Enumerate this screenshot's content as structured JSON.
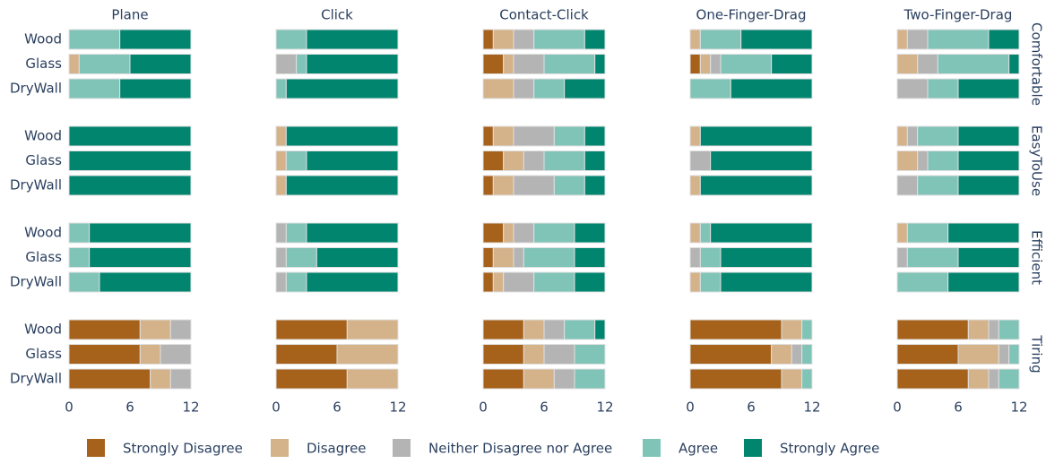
{
  "chart_data": {
    "type": "bar",
    "stacked": true,
    "horizontal": true,
    "columns": [
      "Plane",
      "Click",
      "Contact-Click",
      "One-Finger-Drag",
      "Two-Finger-Drag"
    ],
    "rows": [
      "Comfortable",
      "EasyToUse",
      "Efficient",
      "Tiring"
    ],
    "categories": [
      "Wood",
      "Glass",
      "DryWall"
    ],
    "xlim": [
      0,
      12
    ],
    "xticks": [
      0,
      6,
      12
    ],
    "series": [
      {
        "name": "Strongly Disagree",
        "color": "#a6611a",
        "values": [
          [
            [
              0,
              0,
              0
            ],
            [
              0,
              0,
              0
            ],
            [
              0,
              0,
              0
            ],
            [
              7,
              7,
              8
            ]
          ],
          [
            [
              0,
              0,
              0
            ],
            [
              0,
              0,
              0
            ],
            [
              0,
              0,
              0
            ],
            [
              7,
              6,
              7
            ]
          ],
          [
            [
              1,
              2,
              0
            ],
            [
              1,
              2,
              1
            ],
            [
              2,
              1,
              1
            ],
            [
              4,
              4,
              4
            ]
          ],
          [
            [
              0,
              1,
              0
            ],
            [
              0,
              0,
              0
            ],
            [
              0,
              0,
              0
            ],
            [
              9,
              8,
              9
            ]
          ],
          [
            [
              0,
              0,
              0
            ],
            [
              0,
              0,
              0
            ],
            [
              0,
              0,
              0
            ],
            [
              7,
              6,
              7
            ]
          ]
        ]
      },
      {
        "name": "Disagree",
        "color": "#d4b28a",
        "values": [
          [
            [
              0,
              1,
              0
            ],
            [
              0,
              0,
              0
            ],
            [
              0,
              0,
              0
            ],
            [
              3,
              2,
              2
            ]
          ],
          [
            [
              0,
              0,
              0
            ],
            [
              1,
              1,
              1
            ],
            [
              0,
              0,
              0
            ],
            [
              5,
              6,
              5
            ]
          ],
          [
            [
              2,
              1,
              3
            ],
            [
              2,
              2,
              2
            ],
            [
              1,
              2,
              1
            ],
            [
              2,
              2,
              3
            ]
          ],
          [
            [
              1,
              1,
              0
            ],
            [
              1,
              0,
              1
            ],
            [
              1,
              0,
              1
            ],
            [
              2,
              2,
              2
            ]
          ],
          [
            [
              1,
              2,
              0
            ],
            [
              1,
              2,
              0
            ],
            [
              1,
              0,
              0
            ],
            [
              2,
              4,
              2
            ]
          ]
        ]
      },
      {
        "name": "Neither Disagree nor Agree",
        "color": "#b4b4b4",
        "values": [
          [
            [
              0,
              0,
              0
            ],
            [
              0,
              0,
              0
            ],
            [
              0,
              0,
              0
            ],
            [
              2,
              3,
              2
            ]
          ],
          [
            [
              0,
              2,
              0
            ],
            [
              0,
              0,
              0
            ],
            [
              1,
              1,
              1
            ],
            [
              0,
              0,
              0
            ]
          ],
          [
            [
              2,
              3,
              2
            ],
            [
              4,
              2,
              4
            ],
            [
              2,
              1,
              3
            ],
            [
              2,
              3,
              2
            ]
          ],
          [
            [
              0,
              1,
              0
            ],
            [
              0,
              2,
              0
            ],
            [
              0,
              1,
              0
            ],
            [
              0,
              1,
              0
            ]
          ],
          [
            [
              2,
              2,
              3
            ],
            [
              1,
              1,
              2
            ],
            [
              0,
              1,
              0
            ],
            [
              1,
              1,
              1
            ]
          ]
        ]
      },
      {
        "name": "Agree",
        "color": "#80c4b8",
        "values": [
          [
            [
              5,
              5,
              5
            ],
            [
              0,
              0,
              0
            ],
            [
              2,
              2,
              3
            ],
            [
              0,
              0,
              0
            ]
          ],
          [
            [
              3,
              1,
              1
            ],
            [
              0,
              2,
              0
            ],
            [
              2,
              3,
              2
            ],
            [
              0,
              0,
              0
            ]
          ],
          [
            [
              5,
              5,
              3
            ],
            [
              3,
              4,
              3
            ],
            [
              4,
              5,
              4
            ],
            [
              3,
              3,
              3
            ]
          ],
          [
            [
              4,
              5,
              4
            ],
            [
              0,
              0,
              0
            ],
            [
              1,
              2,
              2
            ],
            [
              1,
              1,
              1
            ]
          ],
          [
            [
              6,
              7,
              3
            ],
            [
              4,
              3,
              4
            ],
            [
              4,
              5,
              5
            ],
            [
              2,
              1,
              2
            ]
          ]
        ]
      },
      {
        "name": "Strongly Agree",
        "color": "#01856f",
        "values": [
          [
            [
              7,
              6,
              7
            ],
            [
              12,
              12,
              12
            ],
            [
              10,
              10,
              9
            ],
            [
              0,
              0,
              0
            ]
          ],
          [
            [
              9,
              9,
              11
            ],
            [
              11,
              9,
              11
            ],
            [
              9,
              8,
              9
            ],
            [
              0,
              0,
              0
            ]
          ],
          [
            [
              2,
              1,
              4
            ],
            [
              2,
              2,
              2
            ],
            [
              3,
              3,
              3
            ],
            [
              1,
              0,
              0
            ]
          ],
          [
            [
              7,
              4,
              8
            ],
            [
              11,
              10,
              11
            ],
            [
              10,
              9,
              9
            ],
            [
              0,
              0,
              0
            ]
          ],
          [
            [
              3,
              1,
              6
            ],
            [
              6,
              6,
              6
            ],
            [
              7,
              6,
              7
            ],
            [
              0,
              0,
              0
            ]
          ]
        ]
      }
    ]
  }
}
